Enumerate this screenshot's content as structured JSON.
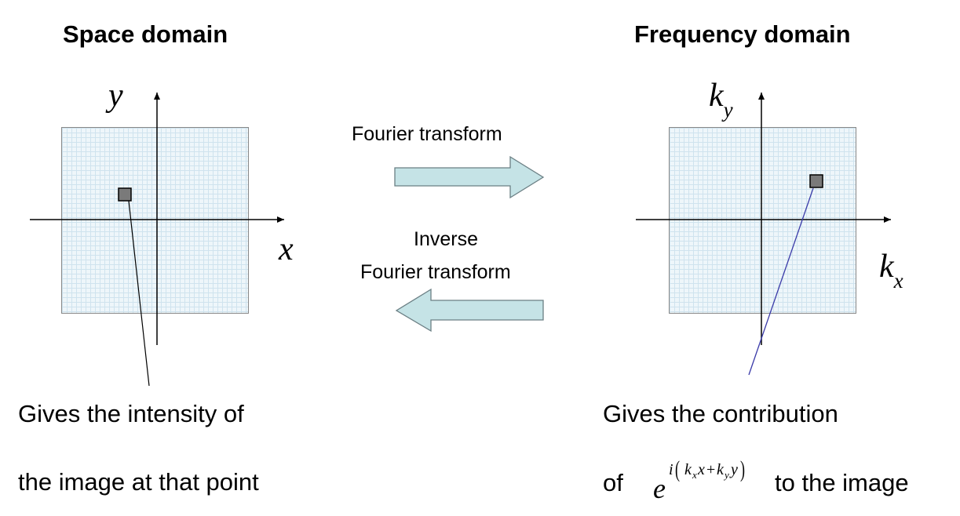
{
  "left_panel": {
    "title": "Space domain",
    "x_axis_label": "x",
    "y_axis_label": "y",
    "caption_line1": "Gives the intensity of",
    "caption_line2": "the image at that point"
  },
  "right_panel": {
    "title": "Frequency domain",
    "x_axis_label": "k",
    "x_axis_sub": "x",
    "y_axis_label": "k",
    "y_axis_sub": "y",
    "caption_line1": "Gives the contribution",
    "caption_of": "of",
    "caption_tail": "to the image",
    "formula": {
      "base": "e",
      "i": "i",
      "k": "k",
      "x_sub": "x",
      "x": "x",
      "plus": "+",
      "y_sub": "y",
      "y": "y"
    }
  },
  "forward_arrow": {
    "label": "Fourier transform",
    "color": "#c5e3e6"
  },
  "inverse_arrow": {
    "label_line1": "Inverse",
    "label_line2": "Fourier transform",
    "color": "#c5e3e6"
  },
  "colors": {
    "grid_fill": "#eef6fa",
    "marker": "#7a7a7a",
    "pointer_left": "#000000",
    "pointer_right": "#3a3aa8"
  }
}
